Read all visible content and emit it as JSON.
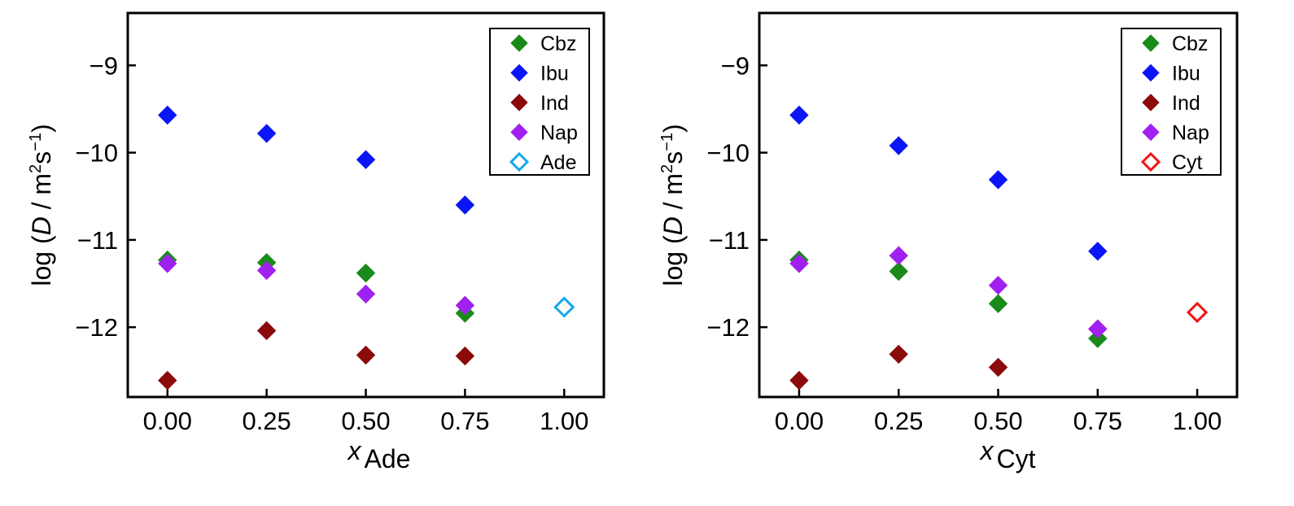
{
  "chart_data": [
    {
      "type": "scatter",
      "xlabel_main": "x",
      "xlabel_sub": "Ade",
      "ylabel": "log (D / m2s−1)",
      "ylabel_parts": {
        "prefix": "log (",
        "var": "D",
        "mid": " / m",
        "sup1": "2",
        "mid2": "s",
        "sup2": "−1",
        "suffix": ")"
      },
      "xlim": [
        -0.1,
        1.1
      ],
      "ylim": [
        -12.8,
        -8.4
      ],
      "xticks": [
        0.0,
        0.25,
        0.5,
        0.75,
        1.0
      ],
      "xtick_labels": [
        "0.00",
        "0.25",
        "0.50",
        "0.75",
        "1.00"
      ],
      "yticks": [
        -12,
        -11,
        -10,
        -9
      ],
      "ytick_labels": [
        "−12",
        "−11",
        "−10",
        "−9"
      ],
      "legend_position": "top-right",
      "series": [
        {
          "name": "Cbz",
          "color": "#1a8a1a",
          "filled": true,
          "x": [
            0,
            0.25,
            0.5,
            0.75
          ],
          "y": [
            -11.23,
            -11.26,
            -11.38,
            -11.84
          ]
        },
        {
          "name": "Ibu",
          "color": "#0a16f5",
          "filled": true,
          "x": [
            0,
            0.25,
            0.5,
            0.75
          ],
          "y": [
            -9.57,
            -9.78,
            -10.08,
            -10.6
          ]
        },
        {
          "name": "Ind",
          "color": "#8b0a0a",
          "filled": true,
          "x": [
            0,
            0.25,
            0.5,
            0.75
          ],
          "y": [
            -12.61,
            -12.04,
            -12.32,
            -12.33
          ]
        },
        {
          "name": "Nap",
          "color": "#a020f0",
          "filled": true,
          "x": [
            0,
            0.25,
            0.5,
            0.75
          ],
          "y": [
            -11.27,
            -11.35,
            -11.62,
            -11.75
          ]
        },
        {
          "name": "Ade",
          "color": "#14a8ee",
          "filled": false,
          "x": [
            1.0
          ],
          "y": [
            -11.77
          ]
        }
      ]
    },
    {
      "type": "scatter",
      "xlabel_main": "x",
      "xlabel_sub": "Cyt",
      "ylabel": "log (D / m2s−1)",
      "ylabel_parts": {
        "prefix": "log (",
        "var": "D",
        "mid": " / m",
        "sup1": "2",
        "mid2": "s",
        "sup2": "−1",
        "suffix": ")"
      },
      "xlim": [
        -0.1,
        1.1
      ],
      "ylim": [
        -12.8,
        -8.4
      ],
      "xticks": [
        0.0,
        0.25,
        0.5,
        0.75,
        1.0
      ],
      "xtick_labels": [
        "0.00",
        "0.25",
        "0.50",
        "0.75",
        "1.00"
      ],
      "yticks": [
        -12,
        -11,
        -10,
        -9
      ],
      "ytick_labels": [
        "−12",
        "−11",
        "−10",
        "−9"
      ],
      "legend_position": "top-right",
      "series": [
        {
          "name": "Cbz",
          "color": "#1a8a1a",
          "filled": true,
          "x": [
            0,
            0.25,
            0.5,
            0.75
          ],
          "y": [
            -11.23,
            -11.36,
            -11.73,
            -12.13
          ]
        },
        {
          "name": "Ibu",
          "color": "#0a16f5",
          "filled": true,
          "x": [
            0,
            0.25,
            0.5,
            0.75
          ],
          "y": [
            -9.57,
            -9.92,
            -10.31,
            -11.13
          ]
        },
        {
          "name": "Ind",
          "color": "#8b0a0a",
          "filled": true,
          "x": [
            0,
            0.25,
            0.5,
            0.75
          ],
          "y": [
            -12.61,
            -12.31,
            -12.46,
            -12.02
          ]
        },
        {
          "name": "Nap",
          "color": "#a020f0",
          "filled": true,
          "x": [
            0,
            0.25,
            0.5,
            0.75
          ],
          "y": [
            -11.27,
            -11.18,
            -11.52,
            -12.02
          ]
        },
        {
          "name": "Cyt",
          "color": "#f01414",
          "filled": false,
          "x": [
            1.0
          ],
          "y": [
            -11.83
          ]
        }
      ]
    }
  ]
}
